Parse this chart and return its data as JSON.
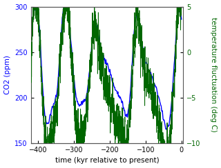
{
  "title": "",
  "xlabel": "time (kyr relative to present)",
  "ylabel_left": "CO2 (ppm)",
  "ylabel_right": "temperature fluctuation (deg C)",
  "xlim": [
    -420,
    5
  ],
  "ylim_co2": [
    150,
    300
  ],
  "ylim_temp": [
    -10,
    5
  ],
  "xticks": [
    -400,
    -300,
    -200,
    -100,
    0
  ],
  "yticks_co2": [
    150,
    200,
    250,
    300
  ],
  "yticks_temp": [
    -10,
    -5,
    0,
    5
  ],
  "co2_color": "#0000ff",
  "temp_color": "#006600",
  "lw_co2": 1.0,
  "lw_temp": 0.7,
  "figsize": [
    3.2,
    2.44
  ],
  "dpi": 100
}
